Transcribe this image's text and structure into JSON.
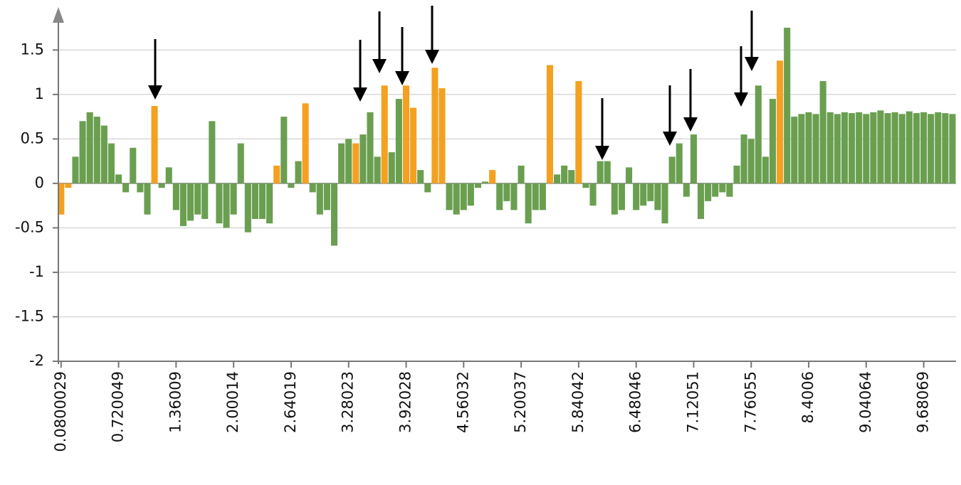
{
  "chart_data": {
    "type": "bar",
    "x": [
      0.08,
      0.16,
      0.24,
      0.32,
      0.4,
      0.48,
      0.56,
      0.64,
      0.72,
      0.8,
      0.88,
      0.96,
      1.04,
      1.12,
      1.2,
      1.28,
      1.36,
      1.44,
      1.52,
      1.6,
      1.68,
      1.76,
      1.84,
      1.92,
      2,
      2.08,
      2.16,
      2.24,
      2.32,
      2.4,
      2.48,
      2.56,
      2.64,
      2.72,
      2.8,
      2.88,
      2.96,
      3.04,
      3.12,
      3.2,
      3.28,
      3.36,
      3.44,
      3.52,
      3.6,
      3.68,
      3.76,
      3.84,
      3.92,
      4,
      4.08,
      4.16,
      4.24,
      4.32,
      4.4,
      4.48,
      4.56,
      4.64,
      4.72,
      4.8,
      4.88,
      4.96,
      5.04,
      5.12,
      5.2,
      5.28,
      5.36,
      5.44,
      5.52,
      5.6,
      5.68,
      5.76,
      5.84,
      5.92,
      6,
      6.08,
      6.16,
      6.24,
      6.32,
      6.4,
      6.48,
      6.56,
      6.64,
      6.72,
      6.8,
      6.88,
      6.96,
      7.04,
      7.12,
      7.2,
      7.28,
      7.36,
      7.44,
      7.52,
      7.6,
      7.68,
      7.76,
      7.84,
      7.92,
      8,
      8.08,
      8.16,
      8.24,
      8.32,
      8.4,
      8.48,
      8.56,
      8.64,
      8.72,
      8.8,
      8.88,
      8.96,
      9.04,
      9.12,
      9.2,
      9.28,
      9.36,
      9.44,
      9.52,
      9.6,
      9.68,
      9.76,
      9.84,
      9.92,
      10
    ],
    "values": [
      -0.35,
      -0.05,
      0.3,
      0.7,
      0.8,
      0.75,
      0.65,
      0.45,
      0.1,
      -0.1,
      0.4,
      -0.1,
      -0.35,
      0.87,
      -0.05,
      0.18,
      -0.3,
      -0.48,
      -0.42,
      -0.35,
      -0.4,
      0.7,
      -0.45,
      -0.5,
      -0.35,
      0.45,
      -0.55,
      -0.4,
      -0.4,
      -0.45,
      0.2,
      0.75,
      -0.05,
      0.25,
      0.9,
      -0.1,
      -0.35,
      -0.3,
      -0.7,
      0.45,
      0.5,
      0.45,
      0.55,
      0.8,
      0.3,
      1.1,
      0.35,
      0.95,
      1.1,
      0.85,
      0.15,
      -0.1,
      1.3,
      1.07,
      -0.3,
      -0.35,
      -0.3,
      -0.25,
      -0.05,
      0.02,
      0.15,
      -0.3,
      -0.2,
      -0.3,
      0.2,
      -0.45,
      -0.3,
      -0.3,
      1.33,
      0.1,
      0.2,
      0.15,
      1.15,
      -0.05,
      -0.25,
      0.25,
      0.25,
      -0.35,
      -0.3,
      0.18,
      -0.3,
      -0.25,
      -0.2,
      -0.3,
      -0.45,
      0.3,
      0.45,
      -0.15,
      0.55,
      -0.4,
      -0.2,
      -0.15,
      -0.1,
      -0.15,
      0.2,
      0.55,
      0.5,
      1.1,
      0.3,
      0.95,
      1.38,
      1.75,
      0.75,
      0.78,
      0.8,
      0.78,
      1.15,
      0.8,
      0.78,
      0.8,
      0.79,
      0.8,
      0.78,
      0.8,
      0.82,
      0.79,
      0.8,
      0.78,
      0.81,
      0.79,
      0.8,
      0.78,
      0.8,
      0.79,
      0.78
    ],
    "colors": [
      "#f4a020",
      "#f4a020",
      "#6a9f50",
      "#6a9f50",
      "#6a9f50",
      "#6a9f50",
      "#6a9f50",
      "#6a9f50",
      "#6a9f50",
      "#6a9f50",
      "#6a9f50",
      "#6a9f50",
      "#6a9f50",
      "#f4a020",
      "#6a9f50",
      "#6a9f50",
      "#6a9f50",
      "#6a9f50",
      "#6a9f50",
      "#6a9f50",
      "#6a9f50",
      "#6a9f50",
      "#6a9f50",
      "#6a9f50",
      "#6a9f50",
      "#6a9f50",
      "#6a9f50",
      "#6a9f50",
      "#6a9f50",
      "#6a9f50",
      "#f4a020",
      "#6a9f50",
      "#6a9f50",
      "#6a9f50",
      "#f4a020",
      "#6a9f50",
      "#6a9f50",
      "#6a9f50",
      "#6a9f50",
      "#6a9f50",
      "#6a9f50",
      "#f4a020",
      "#6a9f50",
      "#6a9f50",
      "#6a9f50",
      "#f4a020",
      "#6a9f50",
      "#6a9f50",
      "#f4a020",
      "#f4a020",
      "#6a9f50",
      "#6a9f50",
      "#f4a020",
      "#f4a020",
      "#6a9f50",
      "#6a9f50",
      "#6a9f50",
      "#6a9f50",
      "#6a9f50",
      "#6a9f50",
      "#f4a020",
      "#6a9f50",
      "#6a9f50",
      "#6a9f50",
      "#6a9f50",
      "#6a9f50",
      "#6a9f50",
      "#6a9f50",
      "#f4a020",
      "#6a9f50",
      "#6a9f50",
      "#6a9f50",
      "#f4a020",
      "#6a9f50",
      "#6a9f50",
      "#6a9f50",
      "#6a9f50",
      "#6a9f50",
      "#6a9f50",
      "#6a9f50",
      "#6a9f50",
      "#6a9f50",
      "#6a9f50",
      "#6a9f50",
      "#6a9f50",
      "#6a9f50",
      "#6a9f50",
      "#6a9f50",
      "#6a9f50",
      "#6a9f50",
      "#6a9f50",
      "#6a9f50",
      "#6a9f50",
      "#6a9f50",
      "#6a9f50",
      "#6a9f50",
      "#6a9f50",
      "#6a9f50",
      "#6a9f50",
      "#6a9f50",
      "#f4a020",
      "#6a9f50",
      "#6a9f50",
      "#6a9f50",
      "#6a9f50",
      "#6a9f50",
      "#6a9f50",
      "#6a9f50",
      "#6a9f50",
      "#6a9f50",
      "#6a9f50",
      "#6a9f50",
      "#6a9f50",
      "#6a9f50",
      "#6a9f50",
      "#6a9f50",
      "#6a9f50",
      "#6a9f50",
      "#6a9f50",
      "#6a9f50",
      "#6a9f50",
      "#6a9f50",
      "#6a9f50",
      "#6a9f50",
      "#6a9f50"
    ],
    "xlim": [
      0.05,
      10.04
    ],
    "xticks": [
      0.0800029,
      0.720049,
      1.36009,
      2.00014,
      2.64019,
      3.28023,
      3.92028,
      4.56032,
      5.20037,
      5.84042,
      6.48046,
      7.12051,
      7.76055,
      8.4006,
      9.04064,
      9.68069
    ],
    "ylim": [
      -2,
      1.95
    ],
    "yticks": [
      -2,
      -1.5,
      -1,
      -0.5,
      0,
      0.5,
      1,
      1.5
    ],
    "grid": true
  }
}
